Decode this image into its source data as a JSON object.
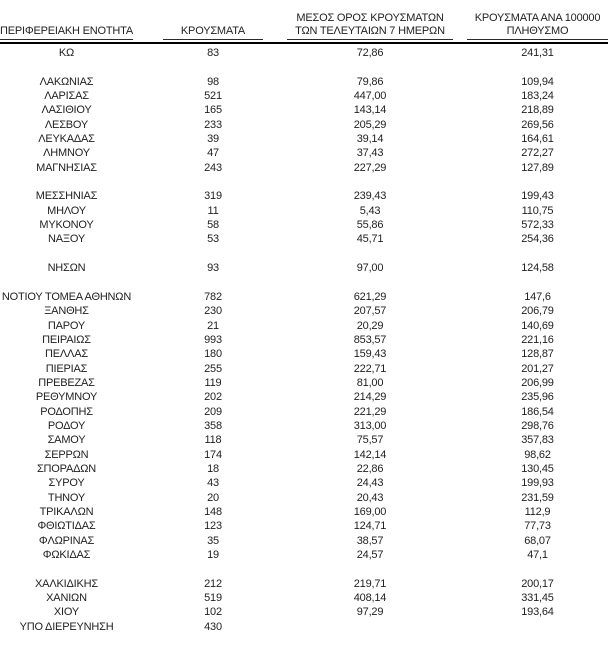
{
  "page": {
    "background": "#ffffff",
    "text_color": "#1f1f1f",
    "rule_color": "#000000"
  },
  "table": {
    "headers": [
      "ΠΕΡΙΦΕΡΕΙΑΚΗ ΕΝΟΤΗΤΑ",
      "ΚΡΟΥΣΜΑΤΑ",
      "ΜΕΣΟΣ ΟΡΟΣ ΚΡΟΥΣΜΑΤΩΝ\nΤΩΝ ΤΕΛΕΥΤΑΙΩΝ 7 ΗΜΕΡΩΝ",
      "ΚΡΟΥΣΜΑΤΑ ΑΝΑ 100000\nΠΛΗΘΥΣΜΟ"
    ],
    "column_keys": [
      "region",
      "cases",
      "avg_7day",
      "per_100k"
    ],
    "rows": [
      [
        "ΚΩ",
        "83",
        "72,86",
        "241,31"
      ],
      null,
      [
        "ΛΑΚΩΝΙΑΣ",
        "98",
        "79,86",
        "109,94"
      ],
      [
        "ΛΑΡΙΣΑΣ",
        "521",
        "447,00",
        "183,24"
      ],
      [
        "ΛΑΣΙΘΙΟΥ",
        "165",
        "143,14",
        "218,89"
      ],
      [
        "ΛΕΣΒΟΥ",
        "233",
        "205,29",
        "269,56"
      ],
      [
        "ΛΕΥΚΑΔΑΣ",
        "39",
        "39,14",
        "164,61"
      ],
      [
        "ΛΗΜΝΟΥ",
        "47",
        "37,43",
        "272,27"
      ],
      [
        "ΜΑΓΝΗΣΙΑΣ",
        "243",
        "227,29",
        "127,89"
      ],
      null,
      [
        "ΜΕΣΣΗΝΙΑΣ",
        "319",
        "239,43",
        "199,43"
      ],
      [
        "ΜΗΛΟΥ",
        "11",
        "5,43",
        "110,75"
      ],
      [
        "ΜΥΚΟΝΟΥ",
        "58",
        "55,86",
        "572,33"
      ],
      [
        "ΝΑΞΟΥ",
        "53",
        "45,71",
        "254,36"
      ],
      null,
      [
        "ΝΗΣΩΝ",
        "93",
        "97,00",
        "124,58"
      ],
      null,
      [
        "ΝΟΤΙΟΥ ΤΟΜΕΑ ΑΘΗΝΩΝ",
        "782",
        "621,29",
        "147,6"
      ],
      [
        "ΞΑΝΘΗΣ",
        "230",
        "207,57",
        "206,79"
      ],
      [
        "ΠΑΡΟΥ",
        "21",
        "20,29",
        "140,69"
      ],
      [
        "ΠΕΙΡΑΙΩΣ",
        "993",
        "853,57",
        "221,16"
      ],
      [
        "ΠΕΛΛΑΣ",
        "180",
        "159,43",
        "128,87"
      ],
      [
        "ΠΙΕΡΙΑΣ",
        "255",
        "222,71",
        "201,27"
      ],
      [
        "ΠΡΕΒΕΖΑΣ",
        "119",
        "81,00",
        "206,99"
      ],
      [
        "ΡΕΘΥΜΝΟΥ",
        "202",
        "214,29",
        "235,96"
      ],
      [
        "ΡΟΔΟΠΗΣ",
        "209",
        "221,29",
        "186,54"
      ],
      [
        "ΡΟΔΟΥ",
        "358",
        "313,00",
        "298,76"
      ],
      [
        "ΣΑΜΟΥ",
        "118",
        "75,57",
        "357,83"
      ],
      [
        "ΣΕΡΡΩΝ",
        "174",
        "142,14",
        "98,62"
      ],
      [
        "ΣΠΟΡΑΔΩΝ",
        "18",
        "22,86",
        "130,45"
      ],
      [
        "ΣΥΡΟΥ",
        "43",
        "24,43",
        "199,93"
      ],
      [
        "ΤΗΝΟΥ",
        "20",
        "20,43",
        "231,59"
      ],
      [
        "ΤΡΙΚΑΛΩΝ",
        "148",
        "169,00",
        "112,9"
      ],
      [
        "ΦΘΙΩΤΙΔΑΣ",
        "123",
        "124,71",
        "77,73"
      ],
      [
        "ΦΛΩΡΙΝΑΣ",
        "35",
        "38,57",
        "68,07"
      ],
      [
        "ΦΩΚΙΔΑΣ",
        "19",
        "24,57",
        "47,1"
      ],
      null,
      [
        "ΧΑΛΚΙΔΙΚΗΣ",
        "212",
        "219,71",
        "200,17"
      ],
      [
        "ΧΑΝΙΩΝ",
        "519",
        "408,14",
        "331,45"
      ],
      [
        "ΧΙΟΥ",
        "102",
        "97,29",
        "193,64"
      ],
      [
        "ΥΠΟ ΔΙΕΡΕΥΝΗΣΗ",
        "430",
        "",
        ""
      ]
    ]
  }
}
